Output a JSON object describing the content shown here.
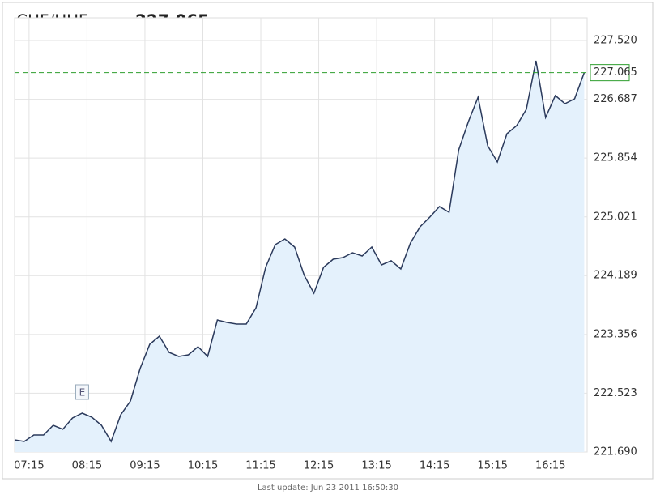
{
  "chart_data": {
    "type": "area",
    "title": "CHF/HUF",
    "current": 227.065,
    "footer": "Last update: Jun 23 2011 16:50:30",
    "x": [
      "07:00",
      "07:10",
      "07:20",
      "07:30",
      "07:40",
      "07:50",
      "08:00",
      "08:10",
      "08:20",
      "08:30",
      "08:40",
      "08:50",
      "09:00",
      "09:10",
      "09:20",
      "09:30",
      "09:40",
      "09:50",
      "10:00",
      "10:10",
      "10:20",
      "10:30",
      "10:40",
      "10:50",
      "11:00",
      "11:10",
      "11:20",
      "11:30",
      "11:40",
      "11:50",
      "12:00",
      "12:10",
      "12:20",
      "12:30",
      "12:40",
      "12:50",
      "13:00",
      "13:10",
      "13:20",
      "13:30",
      "13:40",
      "13:50",
      "14:00",
      "14:10",
      "14:20",
      "14:30",
      "14:40",
      "14:50",
      "15:00",
      "15:10",
      "15:20",
      "15:30",
      "15:40",
      "15:50",
      "16:00",
      "16:10",
      "16:20",
      "16:30",
      "16:40",
      "16:50"
    ],
    "series": [
      {
        "name": "CHF/HUF",
        "color": "#2b3a5c",
        "fill": "#e4f1fc",
        "values": [
          221.862,
          221.839,
          221.931,
          221.931,
          222.069,
          222.012,
          222.172,
          222.241,
          222.184,
          222.069,
          221.839,
          222.218,
          222.413,
          222.872,
          223.216,
          223.331,
          223.102,
          223.044,
          223.067,
          223.182,
          223.044,
          223.561,
          223.526,
          223.503,
          223.503,
          223.733,
          224.307,
          224.628,
          224.708,
          224.594,
          224.192,
          223.939,
          224.307,
          224.421,
          224.444,
          224.513,
          224.467,
          224.594,
          224.341,
          224.399,
          224.284,
          224.651,
          224.881,
          225.018,
          225.167,
          225.087,
          225.971,
          226.372,
          226.717,
          226.028,
          225.799,
          226.2,
          226.315,
          226.545,
          227.233,
          226.43,
          226.74,
          226.625,
          226.694,
          227.065
        ]
      }
    ],
    "events": [
      {
        "x": "08:10",
        "label": "E"
      }
    ],
    "xlim": [
      "07:00",
      "16:53"
    ],
    "xticks": [
      "07:15",
      "08:15",
      "09:15",
      "10:15",
      "11:15",
      "12:15",
      "13:15",
      "14:15",
      "15:15",
      "16:15"
    ],
    "ylim": [
      221.69,
      227.52
    ],
    "yticks": [
      {
        "value": 221.69,
        "label": "221.690"
      },
      222.523,
      223.356,
      224.189,
      225.021,
      225.854,
      226.687,
      {
        "value": 227.52,
        "label": "227.520"
      }
    ],
    "grid": true,
    "current_color": "#2e9e2e"
  }
}
